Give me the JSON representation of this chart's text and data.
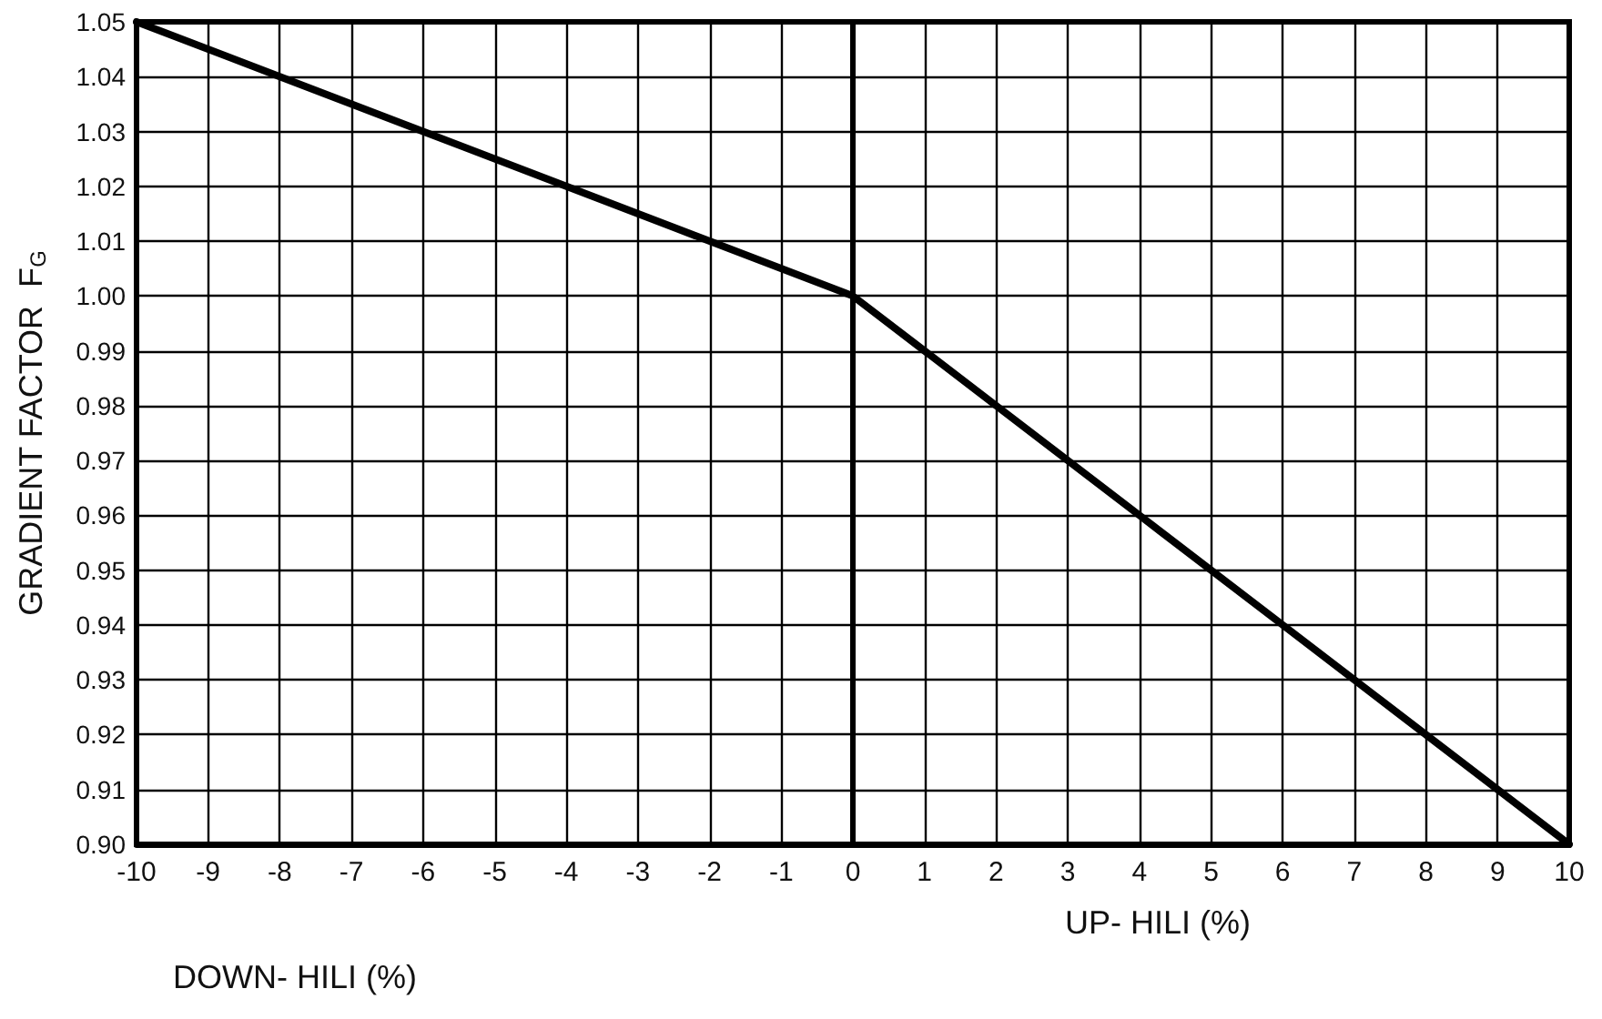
{
  "chart_data": {
    "type": "line",
    "ylabel": "GRADIENT FACTOR  F$_{G}$",
    "annotations": [
      "DOWN- HILI (%)",
      "UP- HILI (%)"
    ],
    "x": [
      -10,
      -8,
      -6,
      -4,
      -2,
      0,
      2,
      4,
      6,
      8,
      10
    ],
    "series": [
      {
        "color": "#000000",
        "values": [
          1.05,
          1.04,
          1.03,
          1.02,
          1.01,
          1.0,
          0.98,
          0.96,
          0.94,
          0.92,
          0.9
        ]
      }
    ],
    "xlim": [
      -10,
      10
    ],
    "xticks": [
      -10,
      -9,
      -8,
      -7,
      -6,
      -5,
      -4,
      -3,
      -2,
      -1,
      0,
      1,
      2,
      3,
      4,
      5,
      6,
      7,
      8,
      9,
      10
    ],
    "ylim": [
      0.9,
      1.05
    ],
    "yticks": [
      {
        "value": 0.9,
        "label": "0.90"
      },
      0.91,
      0.92,
      0.93,
      0.94,
      0.95,
      0.96,
      0.97,
      0.98,
      0.99,
      {
        "value": 1.0,
        "label": "1.00"
      },
      1.01,
      1.02,
      1.03,
      1.04,
      1.05
    ],
    "grid": true,
    "marker": "none",
    "line_style": "solid"
  }
}
